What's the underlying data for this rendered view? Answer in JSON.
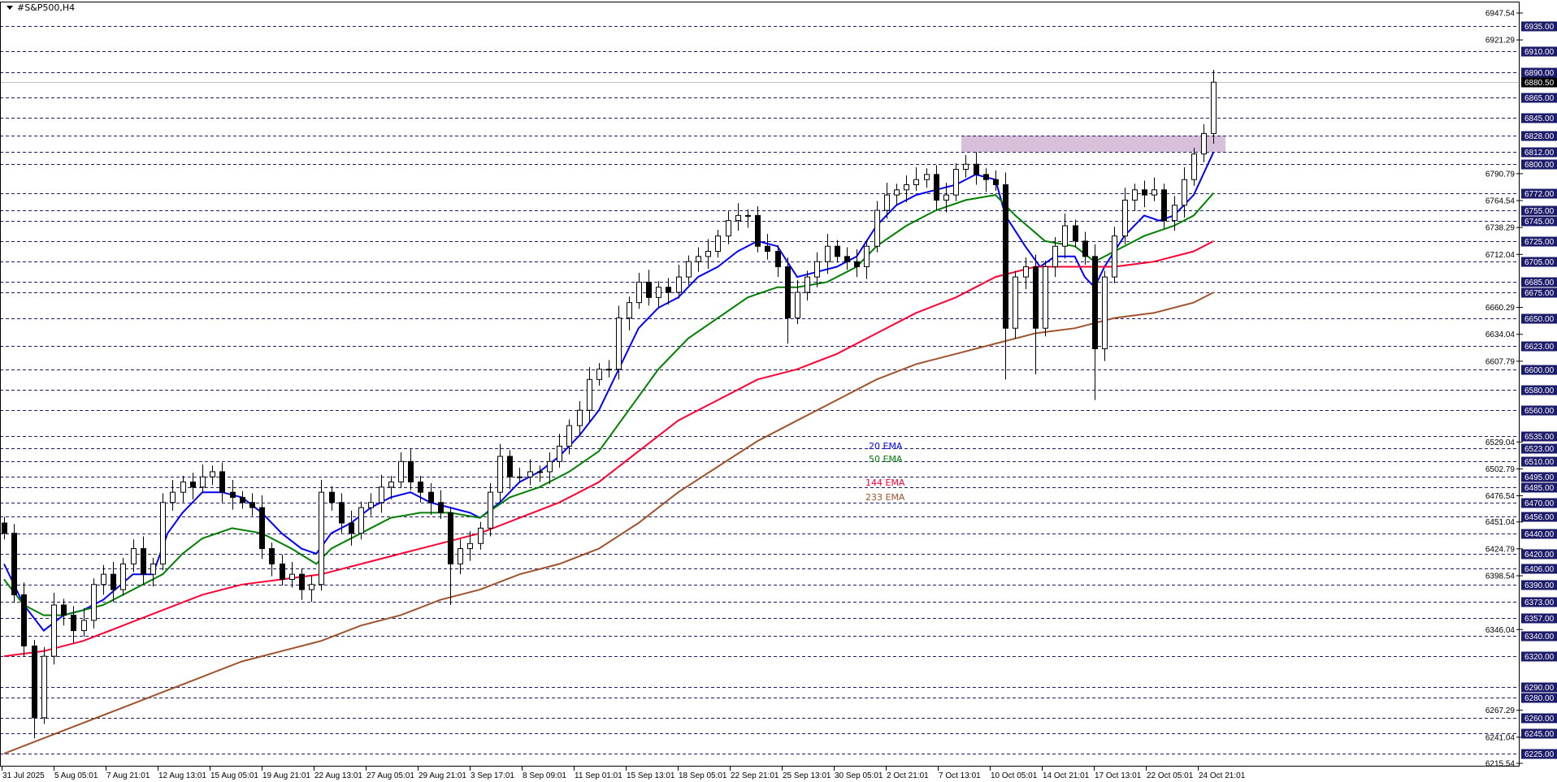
{
  "window": {
    "title": "#S&P500,H4"
  },
  "colors": {
    "level_line": "#1a1a66",
    "level_label_bg": "#1c1c6b",
    "current_price_line": "#c0c0c0",
    "ema20": "#0000ff",
    "ema50": "#008000",
    "ema144": "#ff0033",
    "ema233": "#a0522d",
    "zone": "#d8c0da",
    "bull_body": "#ffffff",
    "bear_body": "#000000"
  },
  "chart_data": {
    "type": "candlestick",
    "symbol": "#S&P500",
    "timeframe": "H4",
    "ylim": [
      6215.54,
      6947.54
    ],
    "grid": false,
    "current_price": "6880.50",
    "price_scale_ticks": [
      "6947.54",
      "6921.29",
      "6790.79",
      "6764.54",
      "6738.29",
      "6712.04",
      "6660.29",
      "6634.04",
      "6607.79",
      "6529.04",
      "6502.79",
      "6476.54",
      "6451.04",
      "6424.79",
      "6398.54",
      "6346.04",
      "6267.29",
      "6241.04",
      "6215.54"
    ],
    "level_lines": [
      "6935.00",
      "6910.00",
      "6890.00",
      "6865.00",
      "6845.00",
      "6828.00",
      "6812.00",
      "6800.00",
      "6772.00",
      "6755.00",
      "6745.00",
      "6725.00",
      "6705.00",
      "6685.00",
      "6675.00",
      "6650.00",
      "6623.00",
      "6600.00",
      "6580.00",
      "6560.00",
      "6535.00",
      "6523.00",
      "6510.00",
      "6495.00",
      "6485.00",
      "6470.00",
      "6456.00",
      "6440.00",
      "6420.00",
      "6406.00",
      "6390.00",
      "6373.00",
      "6357.00",
      "6340.00",
      "6320.00",
      "6290.00",
      "6280.00",
      "6260.00",
      "6245.00",
      "6225.00"
    ],
    "time_labels": [
      "31 Jul 2025",
      "5 Aug 05:01",
      "7 Aug 21:01",
      "12 Aug 13:01",
      "15 Aug 05:01",
      "19 Aug 21:01",
      "22 Aug 13:01",
      "27 Aug 05:01",
      "29 Aug 21:01",
      "3 Sep 17:01",
      "8 Sep 09:01",
      "11 Sep 01:01",
      "15 Sep 13:01",
      "18 Sep 05:01",
      "22 Sep 21:01",
      "25 Sep 13:01",
      "30 Sep 05:01",
      "2 Oct 21:01",
      "7 Oct 13:01",
      "10 Oct 05:01",
      "14 Oct 21:01",
      "17 Oct 13:01",
      "22 Oct 05:01",
      "24 Oct 21:01"
    ],
    "zone": {
      "from": 6812,
      "to": 6828
    },
    "first_open": 6450,
    "close": [
      6440,
      6380,
      6330,
      6260,
      6320,
      6370,
      6360,
      6345,
      6355,
      6390,
      6400,
      6385,
      6410,
      6425,
      6400,
      6410,
      6470,
      6480,
      6490,
      6485,
      6495,
      6500,
      6480,
      6475,
      6470,
      6465,
      6425,
      6410,
      6395,
      6400,
      6385,
      6390,
      6480,
      6470,
      6450,
      6440,
      6465,
      6470,
      6485,
      6490,
      6510,
      6490,
      6480,
      6470,
      6460,
      6410,
      6425,
      6430,
      6445,
      6480,
      6515,
      6495,
      6495,
      6500,
      6500,
      6510,
      6525,
      6545,
      6560,
      6590,
      6600,
      6600,
      6650,
      6665,
      6685,
      6670,
      6680,
      6675,
      6690,
      6705,
      6710,
      6715,
      6730,
      6745,
      6750,
      6750,
      6720,
      6715,
      6700,
      6650,
      6675,
      6690,
      6705,
      6720,
      6710,
      6705,
      6700,
      6720,
      6755,
      6770,
      6775,
      6780,
      6785,
      6790,
      6765,
      6770,
      6795,
      6800,
      6790,
      6785,
      6780,
      6640,
      6690,
      6700,
      6640,
      6700,
      6720,
      6740,
      6725,
      6710,
      6620,
      6690,
      6730,
      6765,
      6775,
      6770,
      6775,
      6745,
      6760,
      6785,
      6810,
      6830,
      6880
    ],
    "low_extremes": [
      [
        3,
        6240
      ],
      [
        45,
        6370
      ],
      [
        79,
        6625
      ],
      [
        101,
        6590
      ],
      [
        104,
        6595
      ],
      [
        110,
        6570
      ]
    ],
    "series": [
      {
        "name": "20 EMA",
        "color": "#0000ff",
        "points": [
          [
            0,
            6410
          ],
          [
            2,
            6370
          ],
          [
            4,
            6345
          ],
          [
            6,
            6360
          ],
          [
            8,
            6365
          ],
          [
            10,
            6375
          ],
          [
            13,
            6400
          ],
          [
            15,
            6400
          ],
          [
            16.5,
            6440
          ],
          [
            18,
            6460
          ],
          [
            20,
            6480
          ],
          [
            22,
            6480
          ],
          [
            24,
            6475
          ],
          [
            26,
            6460
          ],
          [
            28,
            6440
          ],
          [
            30,
            6425
          ],
          [
            31.5,
            6420
          ],
          [
            33,
            6440
          ],
          [
            35,
            6450
          ],
          [
            37,
            6465
          ],
          [
            39,
            6475
          ],
          [
            41,
            6480
          ],
          [
            43,
            6470
          ],
          [
            45,
            6465
          ],
          [
            47,
            6460
          ],
          [
            48,
            6455
          ],
          [
            50,
            6470
          ],
          [
            52,
            6490
          ],
          [
            54,
            6500
          ],
          [
            56,
            6515
          ],
          [
            58,
            6535
          ],
          [
            60,
            6560
          ],
          [
            62,
            6600
          ],
          [
            64,
            6640
          ],
          [
            66,
            6660
          ],
          [
            68,
            6670
          ],
          [
            70,
            6690
          ],
          [
            72,
            6700
          ],
          [
            74,
            6715
          ],
          [
            76,
            6725
          ],
          [
            78,
            6720
          ],
          [
            79,
            6705
          ],
          [
            80,
            6690
          ],
          [
            82,
            6695
          ],
          [
            84,
            6700
          ],
          [
            86,
            6710
          ],
          [
            88,
            6740
          ],
          [
            90,
            6760
          ],
          [
            92,
            6770
          ],
          [
            94,
            6775
          ],
          [
            96,
            6780
          ],
          [
            98,
            6790
          ],
          [
            100,
            6785
          ],
          [
            101,
            6750
          ],
          [
            103,
            6720
          ],
          [
            104.5,
            6700
          ],
          [
            106,
            6710
          ],
          [
            108,
            6710
          ],
          [
            109,
            6690
          ],
          [
            110,
            6680
          ],
          [
            111,
            6700
          ],
          [
            113,
            6730
          ],
          [
            115,
            6750
          ],
          [
            116.5,
            6745
          ],
          [
            118,
            6750
          ],
          [
            120,
            6770
          ],
          [
            122,
            6812
          ]
        ]
      },
      {
        "name": "50 EMA",
        "color": "#008000",
        "points": [
          [
            0,
            6395
          ],
          [
            2,
            6370
          ],
          [
            4,
            6360
          ],
          [
            6,
            6360
          ],
          [
            8,
            6365
          ],
          [
            10,
            6370
          ],
          [
            13,
            6385
          ],
          [
            16,
            6400
          ],
          [
            18,
            6420
          ],
          [
            20,
            6435
          ],
          [
            23,
            6445
          ],
          [
            26,
            6440
          ],
          [
            29,
            6425
          ],
          [
            31.5,
            6410
          ],
          [
            33,
            6425
          ],
          [
            36,
            6440
          ],
          [
            39,
            6455
          ],
          [
            42,
            6460
          ],
          [
            45,
            6460
          ],
          [
            48,
            6455
          ],
          [
            51,
            6475
          ],
          [
            54,
            6485
          ],
          [
            57,
            6500
          ],
          [
            60,
            6520
          ],
          [
            63,
            6560
          ],
          [
            66,
            6600
          ],
          [
            69,
            6630
          ],
          [
            72,
            6650
          ],
          [
            75,
            6670
          ],
          [
            78,
            6680
          ],
          [
            80,
            6680
          ],
          [
            83,
            6685
          ],
          [
            86,
            6700
          ],
          [
            88,
            6720
          ],
          [
            91,
            6740
          ],
          [
            94,
            6755
          ],
          [
            97,
            6765
          ],
          [
            100,
            6770
          ],
          [
            102,
            6750
          ],
          [
            105,
            6725
          ],
          [
            108,
            6720
          ],
          [
            110,
            6705
          ],
          [
            112,
            6715
          ],
          [
            115,
            6730
          ],
          [
            118,
            6740
          ],
          [
            120,
            6750
          ],
          [
            122,
            6772
          ]
        ]
      },
      {
        "name": "144 EMA",
        "color": "#ff0033",
        "points": [
          [
            0,
            6320
          ],
          [
            4,
            6325
          ],
          [
            8,
            6335
          ],
          [
            12,
            6350
          ],
          [
            16,
            6365
          ],
          [
            20,
            6380
          ],
          [
            24,
            6390
          ],
          [
            28,
            6395
          ],
          [
            32,
            6400
          ],
          [
            36,
            6410
          ],
          [
            40,
            6420
          ],
          [
            44,
            6430
          ],
          [
            48,
            6440
          ],
          [
            52,
            6455
          ],
          [
            56,
            6470
          ],
          [
            60,
            6490
          ],
          [
            64,
            6520
          ],
          [
            68,
            6550
          ],
          [
            72,
            6570
          ],
          [
            76,
            6590
          ],
          [
            80,
            6600
          ],
          [
            84,
            6615
          ],
          [
            88,
            6635
          ],
          [
            92,
            6655
          ],
          [
            96,
            6670
          ],
          [
            100,
            6690
          ],
          [
            104,
            6700
          ],
          [
            108,
            6700
          ],
          [
            112,
            6700
          ],
          [
            116,
            6705
          ],
          [
            120,
            6715
          ],
          [
            122,
            6725
          ]
        ]
      },
      {
        "name": "233 EMA",
        "color": "#a0522d",
        "points": [
          [
            0,
            6225
          ],
          [
            4,
            6240
          ],
          [
            8,
            6255
          ],
          [
            12,
            6270
          ],
          [
            16,
            6285
          ],
          [
            20,
            6300
          ],
          [
            24,
            6315
          ],
          [
            28,
            6325
          ],
          [
            32,
            6335
          ],
          [
            36,
            6350
          ],
          [
            40,
            6360
          ],
          [
            44,
            6375
          ],
          [
            48,
            6385
          ],
          [
            52,
            6400
          ],
          [
            56,
            6410
          ],
          [
            60,
            6425
          ],
          [
            64,
            6450
          ],
          [
            68,
            6480
          ],
          [
            72,
            6505
          ],
          [
            76,
            6530
          ],
          [
            80,
            6550
          ],
          [
            84,
            6570
          ],
          [
            88,
            6590
          ],
          [
            92,
            6605
          ],
          [
            96,
            6615
          ],
          [
            100,
            6625
          ],
          [
            104,
            6635
          ],
          [
            108,
            6640
          ],
          [
            112,
            6650
          ],
          [
            116,
            6655
          ],
          [
            120,
            6665
          ],
          [
            122,
            6675
          ]
        ]
      }
    ],
    "legend_labels": [
      "20 EMA",
      "50 EMA",
      "144 EMA",
      "233 EMA"
    ]
  }
}
